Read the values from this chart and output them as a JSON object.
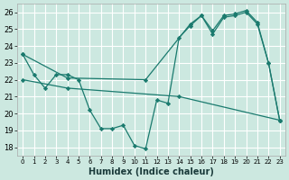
{
  "xlabel": "Humidex (Indice chaleur)",
  "bg_color": "#cce8e0",
  "line_color": "#1a7a6e",
  "xlim": [
    -0.5,
    23.5
  ],
  "ylim": [
    17.5,
    26.5
  ],
  "xticks": [
    0,
    1,
    2,
    3,
    4,
    5,
    6,
    7,
    8,
    9,
    10,
    11,
    12,
    13,
    14,
    15,
    16,
    17,
    18,
    19,
    20,
    21,
    22,
    23
  ],
  "yticks": [
    18,
    19,
    20,
    21,
    22,
    23,
    24,
    25,
    26
  ],
  "line1_x": [
    0,
    1,
    2,
    3,
    4,
    5,
    6,
    7,
    8,
    9,
    10,
    11,
    12,
    13,
    14,
    15,
    16,
    17,
    18,
    19,
    20,
    21,
    22,
    23
  ],
  "line1_y": [
    23.5,
    22.3,
    21.5,
    22.3,
    22.3,
    22.0,
    20.2,
    19.1,
    19.1,
    19.3,
    18.1,
    17.9,
    20.8,
    20.6,
    24.5,
    25.2,
    25.8,
    24.7,
    25.7,
    25.8,
    26.0,
    25.3,
    23.0,
    19.6
  ],
  "line2_x": [
    0,
    4,
    11,
    15,
    16,
    17,
    18,
    19,
    20,
    21,
    22,
    23
  ],
  "line2_y": [
    23.5,
    22.1,
    22.0,
    25.3,
    25.8,
    24.9,
    25.8,
    25.9,
    26.1,
    25.4,
    23.0,
    19.6
  ],
  "line3_x": [
    0,
    4,
    14,
    23
  ],
  "line3_y": [
    22.0,
    21.5,
    21.0,
    19.6
  ]
}
